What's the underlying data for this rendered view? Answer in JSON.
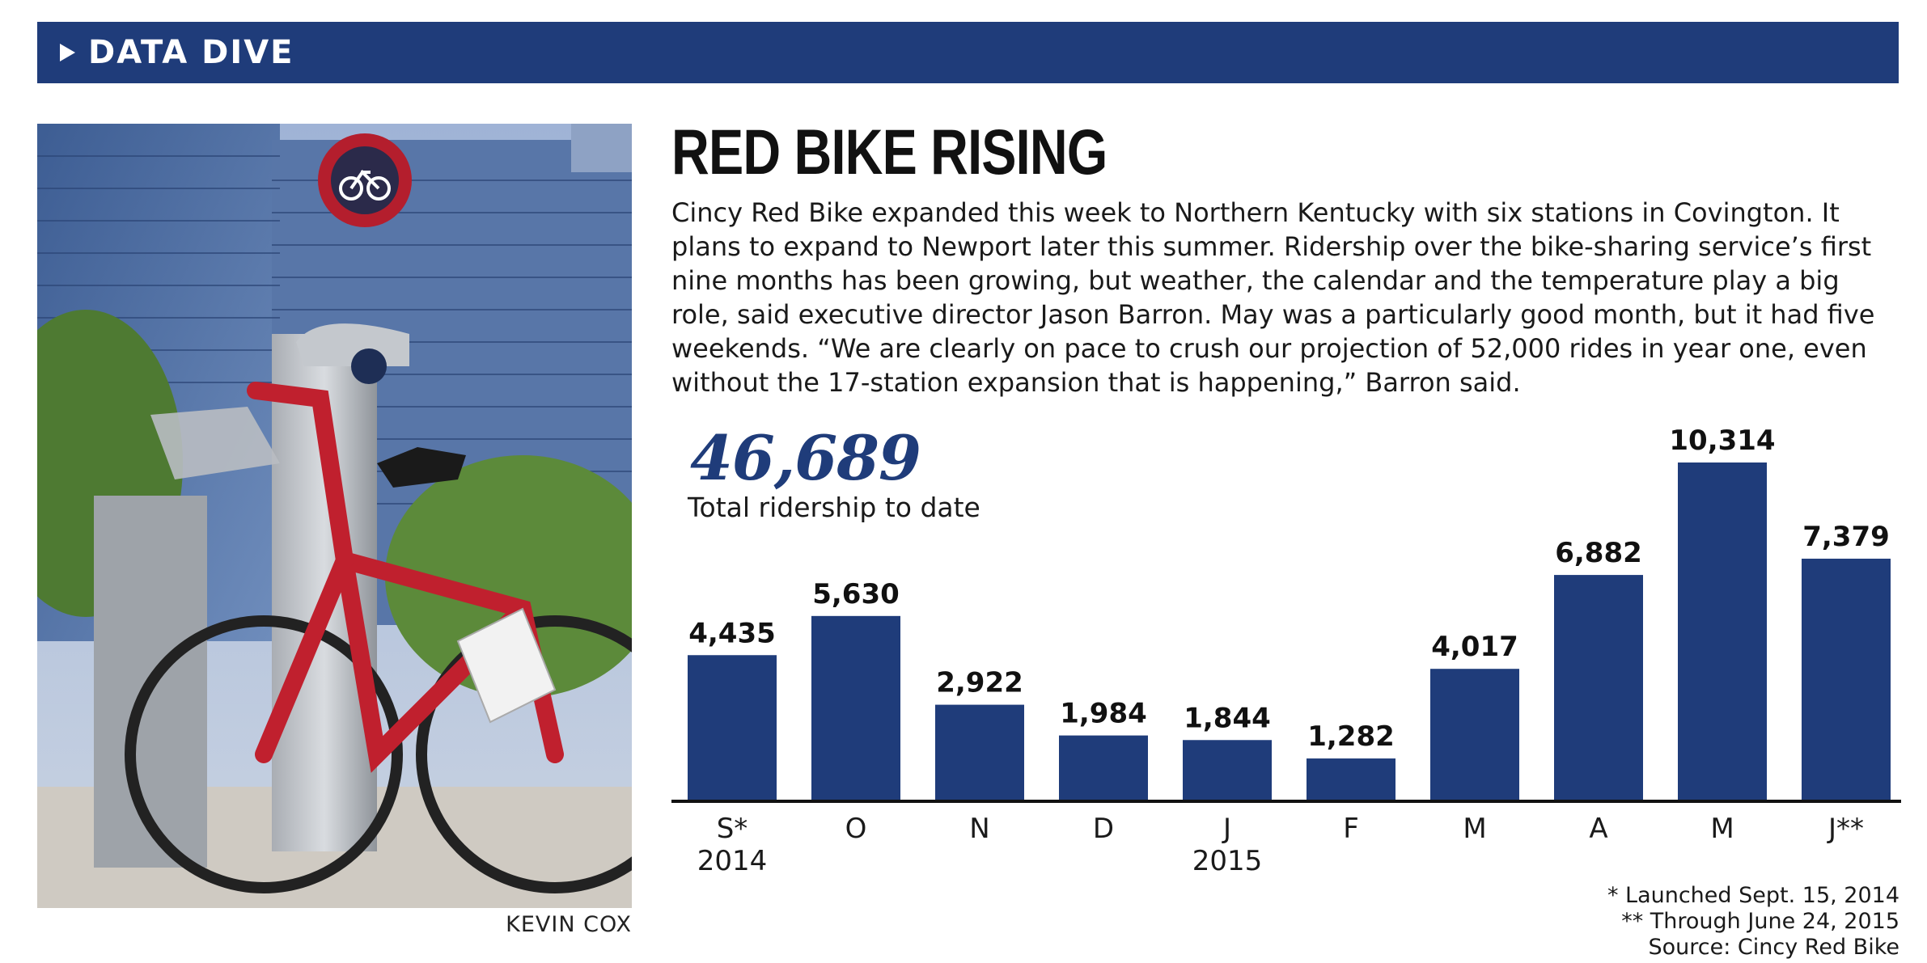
{
  "banner": {
    "label": "DATA DIVE",
    "icon": "play-triangle-icon"
  },
  "photo": {
    "credit": "KEVIN COX"
  },
  "headline": "RED BIKE RISING",
  "intro": "Cincy Red Bike expanded this week to Northern Kentucky with six stations in Covington. It plans to expand to Newport later this summer. Ridership over the bike-sharing service’s first nine months has been growing, but weather, the calendar and the temperature play a big role, said executive director Jason Barron. May was a particularly good month, but it had five weekends. “We are clearly on pace to crush our projection of 52,000 rides in year one, even without the 17-station expansion that is happening,” Barron said.",
  "total": {
    "value": "46,689",
    "label": "Total ridership to date"
  },
  "colors": {
    "bar": "#1f3c7a",
    "banner": "#1f3c7a",
    "accent": "#1f3c7a"
  },
  "chart_data": {
    "type": "bar",
    "categories": [
      "S*",
      "O",
      "N",
      "D",
      "J",
      "F",
      "M",
      "A",
      "M",
      "J**"
    ],
    "year_labels": [
      {
        "category_index": 0,
        "label": "2014"
      },
      {
        "category_index": 4,
        "label": "2015"
      }
    ],
    "values": [
      4435,
      5630,
      2922,
      1984,
      1844,
      1282,
      4017,
      6882,
      10314,
      7379
    ],
    "value_labels": [
      "4,435",
      "5,630",
      "2,922",
      "1,984",
      "1,844",
      "1,282",
      "4,017",
      "6,882",
      "10,314",
      "7,379"
    ],
    "title": "",
    "xlabel": "",
    "ylabel": "",
    "ylim": [
      0,
      10314
    ],
    "grid": false,
    "legend": "none"
  },
  "notes": [
    "* Launched Sept. 15, 2014",
    "** Through June 24, 2015",
    "Source: Cincy Red Bike"
  ]
}
